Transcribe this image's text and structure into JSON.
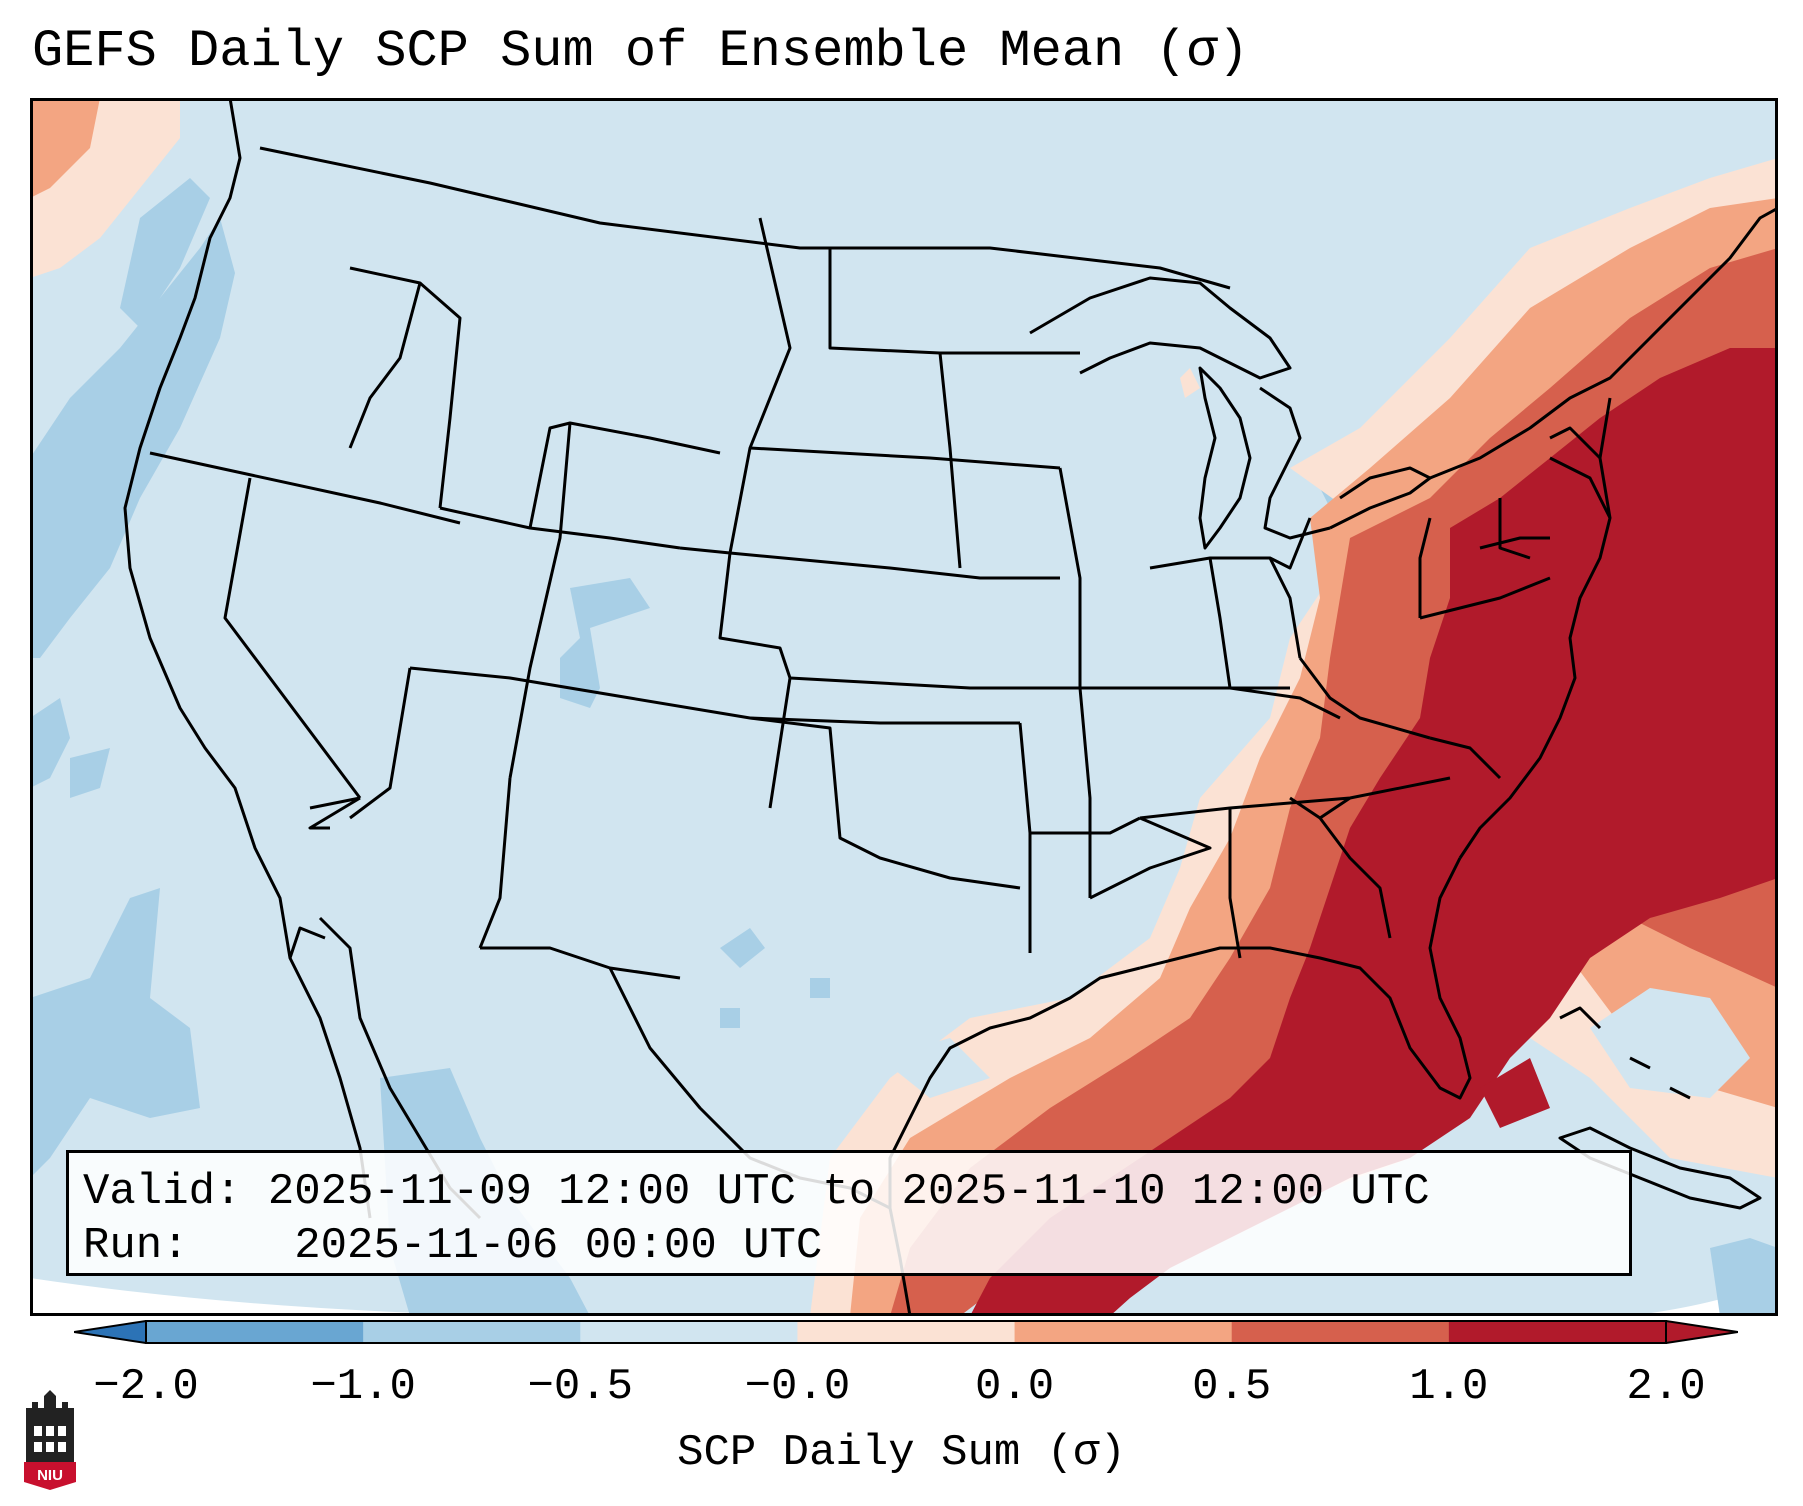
{
  "title": "GEFS Daily SCP Sum of Ensemble Mean (σ)",
  "info": {
    "valid_label": "Valid:",
    "valid_value": "2025-11-09 12:00 UTC to 2025-11-10 12:00 UTC",
    "run_label": "Run:",
    "run_value": "2025-11-06 00:00 UTC"
  },
  "colorbar": {
    "label": "SCP Daily Sum (σ)",
    "ticks": [
      "−2.0",
      "−1.0",
      "−0.5",
      "−0.0",
      "0.0",
      "0.5",
      "1.0",
      "2.0"
    ],
    "colors": [
      "#2c73b6",
      "#69a6d2",
      "#a8cfe6",
      "#d1e5f0",
      "#fbe2d4",
      "#f3a582",
      "#d6604d",
      "#b11a2b"
    ],
    "extend": "both"
  },
  "logo": {
    "text": "NIU",
    "name": "niu-logo"
  },
  "map": {
    "projection": "Lambert conformal, CONUS",
    "background_value_class": "-0.5 to -0.0",
    "highlight": "Southeast and East Coast anomalies 1.0 to 2.0+"
  }
}
